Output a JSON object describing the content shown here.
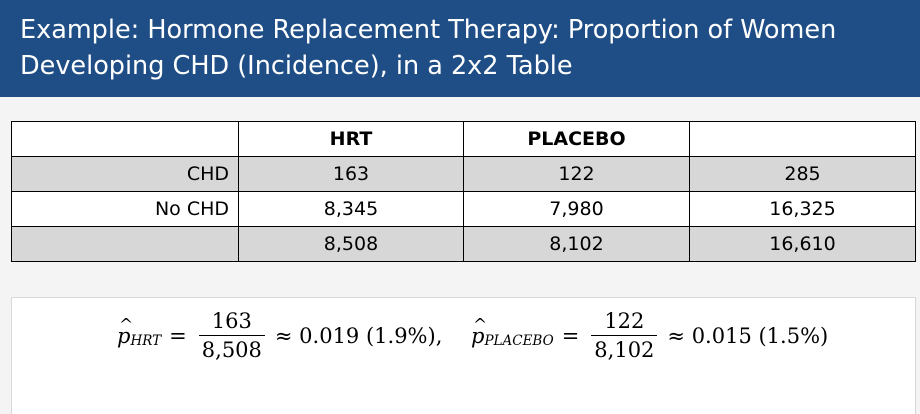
{
  "title": {
    "line1": "Example: Hormone Replacement Therapy: Proportion of Women",
    "line2": "Developing CHD (Incidence), in a 2x2 Table"
  },
  "table": {
    "headers": [
      "",
      "HRT",
      "PLACEBO",
      ""
    ],
    "rows": [
      [
        "CHD",
        "163",
        "122",
        "285"
      ],
      [
        "No CHD",
        "8,345",
        "7,980",
        "16,325"
      ],
      [
        "",
        "8,508",
        "8,102",
        "16,610"
      ]
    ]
  },
  "formulas": {
    "hrt": {
      "symbol": "p",
      "hat": "^",
      "subscript": "HRT",
      "equals": "=",
      "numerator": "163",
      "denominator": "8,508",
      "result": "≈ 0.019 (1.9%),"
    },
    "placebo": {
      "symbol": "p",
      "hat": "^",
      "subscript": "PLACEBO",
      "equals": "=",
      "numerator": "122",
      "denominator": "8,102",
      "result": "≈ 0.015 (1.5%)"
    }
  },
  "colors": {
    "title_background": "#1f4e86",
    "shaded_row": "#d7d7d7"
  }
}
